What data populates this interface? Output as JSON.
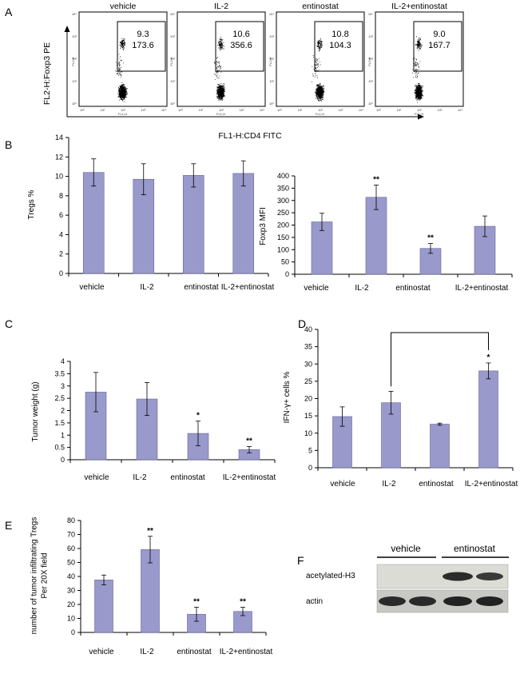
{
  "panels": {
    "A": {
      "letter": "A",
      "y_axis_title": "FL2-H:Foxp3 PE",
      "x_axis_title": "FL1-H:CD4 FITC",
      "tick_decade_labels": [
        "10⁰",
        "10¹",
        "10²",
        "10³",
        "10⁴"
      ],
      "axis_small_x": "FL1-H",
      "axis_small_y": "FL2-H",
      "plots": [
        {
          "title": "vehicle",
          "percent": "9.3",
          "mfi": "173.6"
        },
        {
          "title": "IL-2",
          "percent": "10.6",
          "mfi": "356.6"
        },
        {
          "title": "entinostat",
          "percent": "10.8",
          "mfi": "104.3"
        },
        {
          "title": "IL-2+entinostat",
          "percent": "9.0",
          "mfi": "167.7"
        }
      ]
    },
    "F": {
      "letter": "F",
      "group_labels": [
        "vehicle",
        "entinostat"
      ],
      "row_labels": [
        "acetylated-H3",
        "actin"
      ]
    }
  },
  "chart_data": [
    {
      "id": "B-left",
      "letter": "B",
      "type": "bar",
      "categories": [
        "vehicle",
        "IL-2",
        "entinostat",
        "IL-2+entinostat"
      ],
      "values": [
        10.4,
        9.7,
        10.1,
        10.3
      ],
      "errors": [
        1.4,
        1.6,
        1.2,
        1.3
      ],
      "stars": [
        "",
        "",
        "",
        ""
      ],
      "ylabel": "Tregs %",
      "ylim": [
        0,
        14
      ],
      "yticks": [
        "0",
        "2",
        "4",
        "6",
        "8",
        "10",
        "12",
        "14"
      ]
    },
    {
      "id": "B-right",
      "letter": "",
      "type": "bar",
      "categories": [
        "vehicle",
        "IL-2",
        "entinostat",
        "IL-2+entinostat"
      ],
      "values": [
        213,
        313,
        105,
        195
      ],
      "errors": [
        35,
        50,
        20,
        42
      ],
      "stars": [
        "",
        "**",
        "**",
        ""
      ],
      "ylabel": "Foxp3 MFI",
      "ylim": [
        0,
        400
      ],
      "yticks": [
        "0",
        "50",
        "100",
        "150",
        "200",
        "250",
        "300",
        "350",
        "400"
      ]
    },
    {
      "id": "C",
      "letter": "C",
      "type": "bar",
      "categories": [
        "vehicle",
        "IL-2",
        "entinostat",
        "IL-2+entinostat"
      ],
      "values": [
        2.75,
        2.47,
        1.07,
        0.41
      ],
      "errors": [
        0.8,
        0.67,
        0.5,
        0.13
      ],
      "stars": [
        "",
        "",
        "*",
        "**"
      ],
      "ylabel": "Tumor weight (g)",
      "ylim": [
        0,
        4
      ],
      "yticks": [
        "0",
        "0.5",
        "1",
        "1.5",
        "2",
        "2.5",
        "3",
        "3.5",
        "4"
      ]
    },
    {
      "id": "D",
      "letter": "D",
      "type": "bar",
      "categories": [
        "vehicle",
        "IL-2",
        "entinostat",
        "IL-2+entinostat"
      ],
      "values": [
        14.8,
        18.8,
        12.6,
        28.0
      ],
      "errors": [
        2.8,
        3.3,
        0.3,
        2.3
      ],
      "stars": [
        "",
        "",
        "",
        "*"
      ],
      "bracket": [
        1,
        3
      ],
      "ylabel": "IFN-γ+ cells %",
      "ylim": [
        0,
        40
      ],
      "yticks": [
        "0",
        "5",
        "10",
        "15",
        "20",
        "25",
        "30",
        "35",
        "40"
      ]
    },
    {
      "id": "E",
      "letter": "E",
      "type": "bar",
      "categories": [
        "vehicle",
        "IL-2",
        "entinostat",
        "IL-2+entinostat"
      ],
      "values": [
        37.5,
        59.2,
        13.0,
        15.0
      ],
      "errors": [
        3.5,
        9.5,
        5.0,
        3.0
      ],
      "stars": [
        "",
        "**",
        "**",
        "**"
      ],
      "ylabel": "number of tumor infiltrating Tregs\nPer 20X field",
      "ylim": [
        0,
        80
      ],
      "yticks": [
        "0",
        "10",
        "20",
        "30",
        "40",
        "50",
        "60",
        "70",
        "80"
      ]
    }
  ],
  "colors": {
    "bar_fill": "#9999cc",
    "bar_stroke": "#666699",
    "grid_axis": "#000000"
  }
}
